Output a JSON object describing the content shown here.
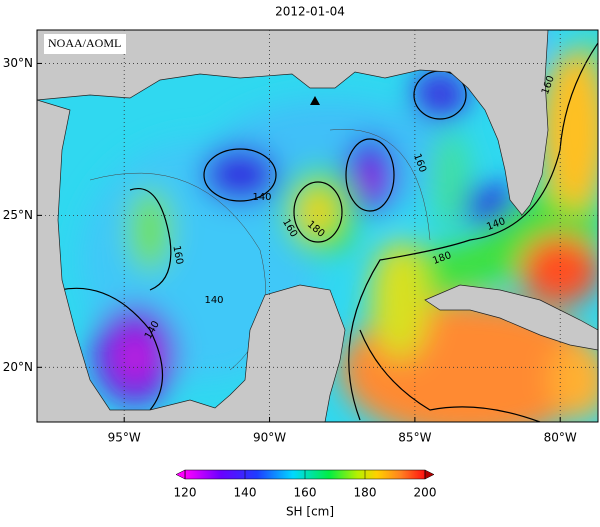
{
  "title": "2012-01-04",
  "credit": "NOAA/AOML",
  "map": {
    "lon_range": [
      -98,
      -78.7
    ],
    "lat_range": [
      18.2,
      31.1
    ],
    "lat_ticks": [
      {
        "value": 30,
        "label": "30°N"
      },
      {
        "value": 25,
        "label": "25°N"
      },
      {
        "value": 20,
        "label": "20°N"
      }
    ],
    "lon_ticks": [
      {
        "value": -95,
        "label": "95°W"
      },
      {
        "value": -90,
        "label": "90°W"
      },
      {
        "value": -85,
        "label": "85°W"
      },
      {
        "value": -80,
        "label": "80°W"
      }
    ],
    "contour_labels": [
      "140",
      "140",
      "160",
      "180",
      "160",
      "160",
      "140",
      "180",
      "160",
      "140"
    ]
  },
  "colorbar": {
    "label": "SH [cm]",
    "range": [
      120,
      200
    ],
    "ticks": [
      120,
      140,
      160,
      180,
      200
    ]
  }
}
